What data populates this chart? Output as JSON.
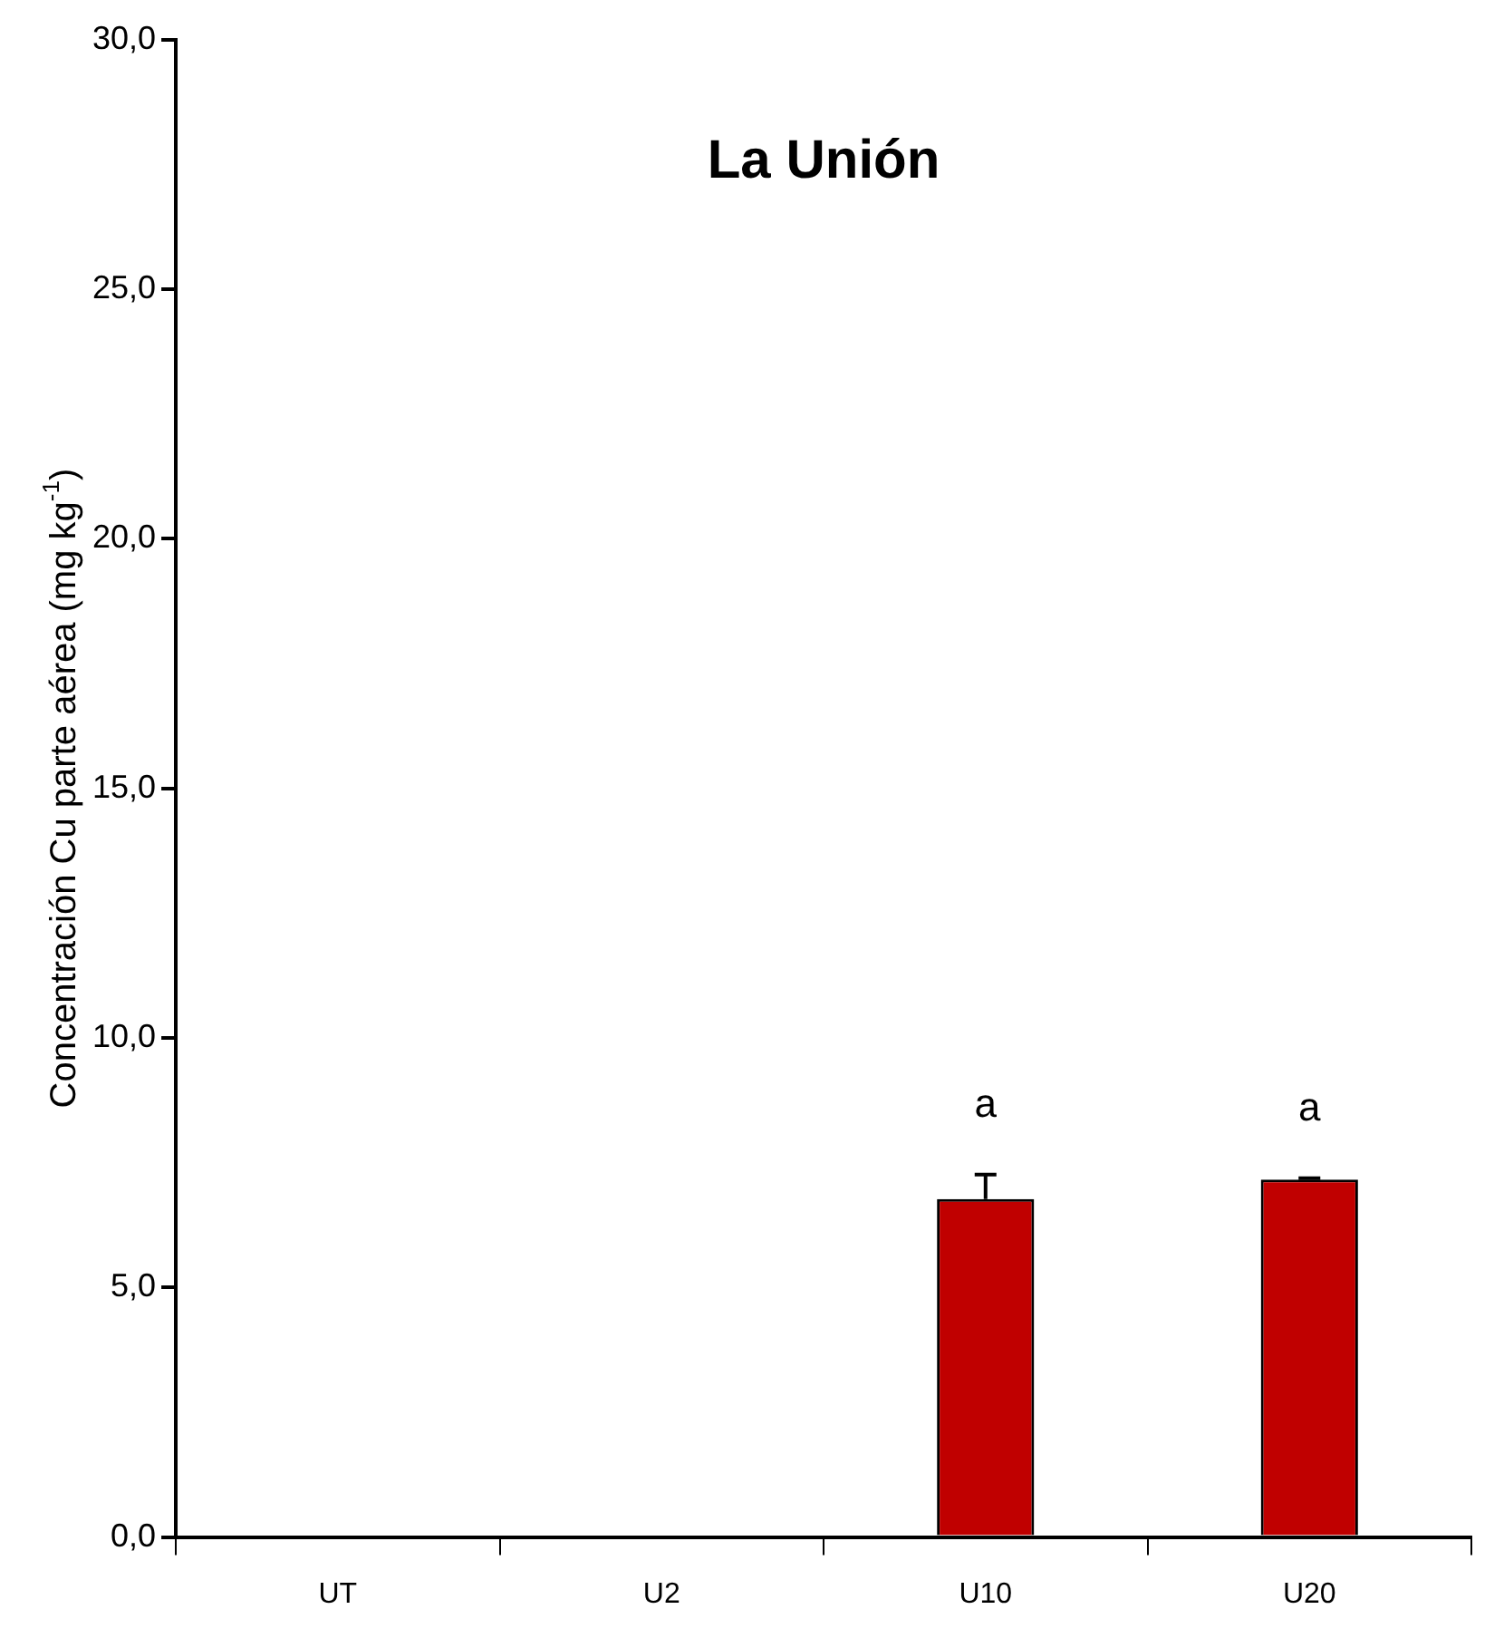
{
  "chart_data": {
    "type": "bar",
    "title": "La Unión",
    "ylabel": "Concentración Cu parte aérea (mg kg$^{-1}$)",
    "categories": [
      "UT",
      "U2",
      "U10",
      "U20"
    ],
    "values": [
      null,
      null,
      6.77,
      7.16
    ],
    "errors": [
      null,
      null,
      0.49,
      0.03
    ],
    "color": "#c00000",
    "ylim": [
      0,
      30
    ],
    "yticks": [
      {
        "value": 0,
        "label": "0,0"
      },
      {
        "value": 5,
        "label": "5,0"
      },
      {
        "value": 10,
        "label": "10,0"
      },
      {
        "value": 15,
        "label": "15,0"
      },
      {
        "value": 20,
        "label": "20,0"
      },
      {
        "value": 25,
        "label": "25,0"
      },
      {
        "value": 30,
        "label": "30,0"
      }
    ],
    "annotations": [
      {
        "text": "a",
        "x": "U10",
        "y": 7.26
      },
      {
        "text": "a",
        "x": "U20",
        "y": 7.19
      }
    ],
    "grid": false,
    "legend": false
  }
}
